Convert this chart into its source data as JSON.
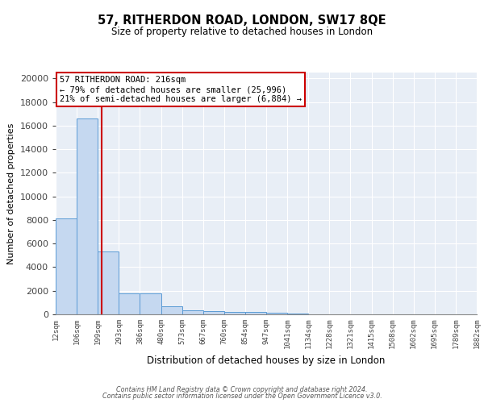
{
  "title": "57, RITHERDON ROAD, LONDON, SW17 8QE",
  "subtitle": "Size of property relative to detached houses in London",
  "xlabel": "Distribution of detached houses by size in London",
  "ylabel": "Number of detached properties",
  "bar_heights": [
    8100,
    16600,
    5300,
    1800,
    1750,
    700,
    310,
    250,
    200,
    195,
    150,
    50,
    30,
    20,
    15,
    10,
    8,
    5,
    4,
    3
  ],
  "bar_edges": [
    12,
    106,
    199,
    293,
    386,
    480,
    573,
    667,
    760,
    854,
    947,
    1041,
    1134,
    1228,
    1321,
    1415,
    1508,
    1602,
    1695,
    1789,
    1882
  ],
  "tick_labels": [
    "12sqm",
    "106sqm",
    "199sqm",
    "293sqm",
    "386sqm",
    "480sqm",
    "573sqm",
    "667sqm",
    "760sqm",
    "854sqm",
    "947sqm",
    "1041sqm",
    "1134sqm",
    "1228sqm",
    "1321sqm",
    "1415sqm",
    "1508sqm",
    "1602sqm",
    "1695sqm",
    "1789sqm",
    "1882sqm"
  ],
  "bar_color": "#c5d8f0",
  "bar_edge_color": "#5b9bd5",
  "background_color": "#e8eef6",
  "vline_x": 216,
  "vline_color": "#cc0000",
  "annotation_text": "57 RITHERDON ROAD: 216sqm\n← 79% of detached houses are smaller (25,996)\n21% of semi-detached houses are larger (6,884) →",
  "annotation_box_color": "#ffffff",
  "annotation_box_edge": "#cc0000",
  "ylim": [
    0,
    20500
  ],
  "yticks": [
    0,
    2000,
    4000,
    6000,
    8000,
    10000,
    12000,
    14000,
    16000,
    18000,
    20000
  ],
  "footnote_line1": "Contains HM Land Registry data © Crown copyright and database right 2024.",
  "footnote_line2": "Contains public sector information licensed under the Open Government Licence v3.0."
}
